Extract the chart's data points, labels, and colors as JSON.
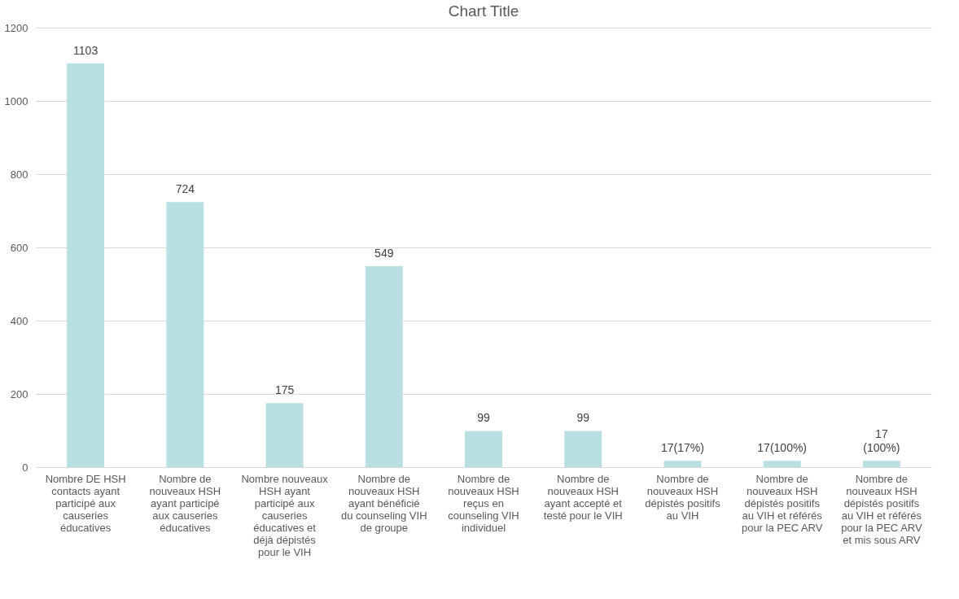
{
  "chart_data": {
    "type": "bar",
    "title": "Chart Title",
    "categories": [
      "Nombre DE HSH contacts ayant participé aux causeries éducatives",
      "Nombre de nouveaux HSH ayant participé aux causeries éducatives",
      "Nombre nouveaux  HSH ayant participé aux causeries éducatives et déjà dépistés pour le VIH",
      "Nombre de nouveaux HSH ayant bénéficié du counseling VIH de groupe",
      "Nombre de nouveaux HSH reçus en counseling VIH individuel",
      "Nombre de nouveaux HSH ayant accepté et testé pour le VIH",
      "Nombre de nouveaux HSH dépistés positifs au VIH",
      "Nombre de nouveaux HSH dépistés positifs au VIH et référés pour la PEC ARV",
      "Nombre de nouveaux HSH dépistés positifs au VIH et référés pour la PEC ARV et mis sous ARV"
    ],
    "values": [
      1103,
      724,
      175,
      549,
      99,
      99,
      17,
      17,
      17
    ],
    "value_labels": [
      "1103",
      "724",
      "175",
      "549",
      "99",
      "99",
      "17(17%)",
      "17(100%)",
      "17 (100%)"
    ],
    "color": "#b9dfe3",
    "ylim": [
      0,
      1200
    ],
    "yticks": [
      0,
      200,
      400,
      600,
      800,
      {
        "value": 1000,
        "label": "1000"
      },
      {
        "value": 1200,
        "label": "1200"
      }
    ],
    "grid": "y"
  }
}
